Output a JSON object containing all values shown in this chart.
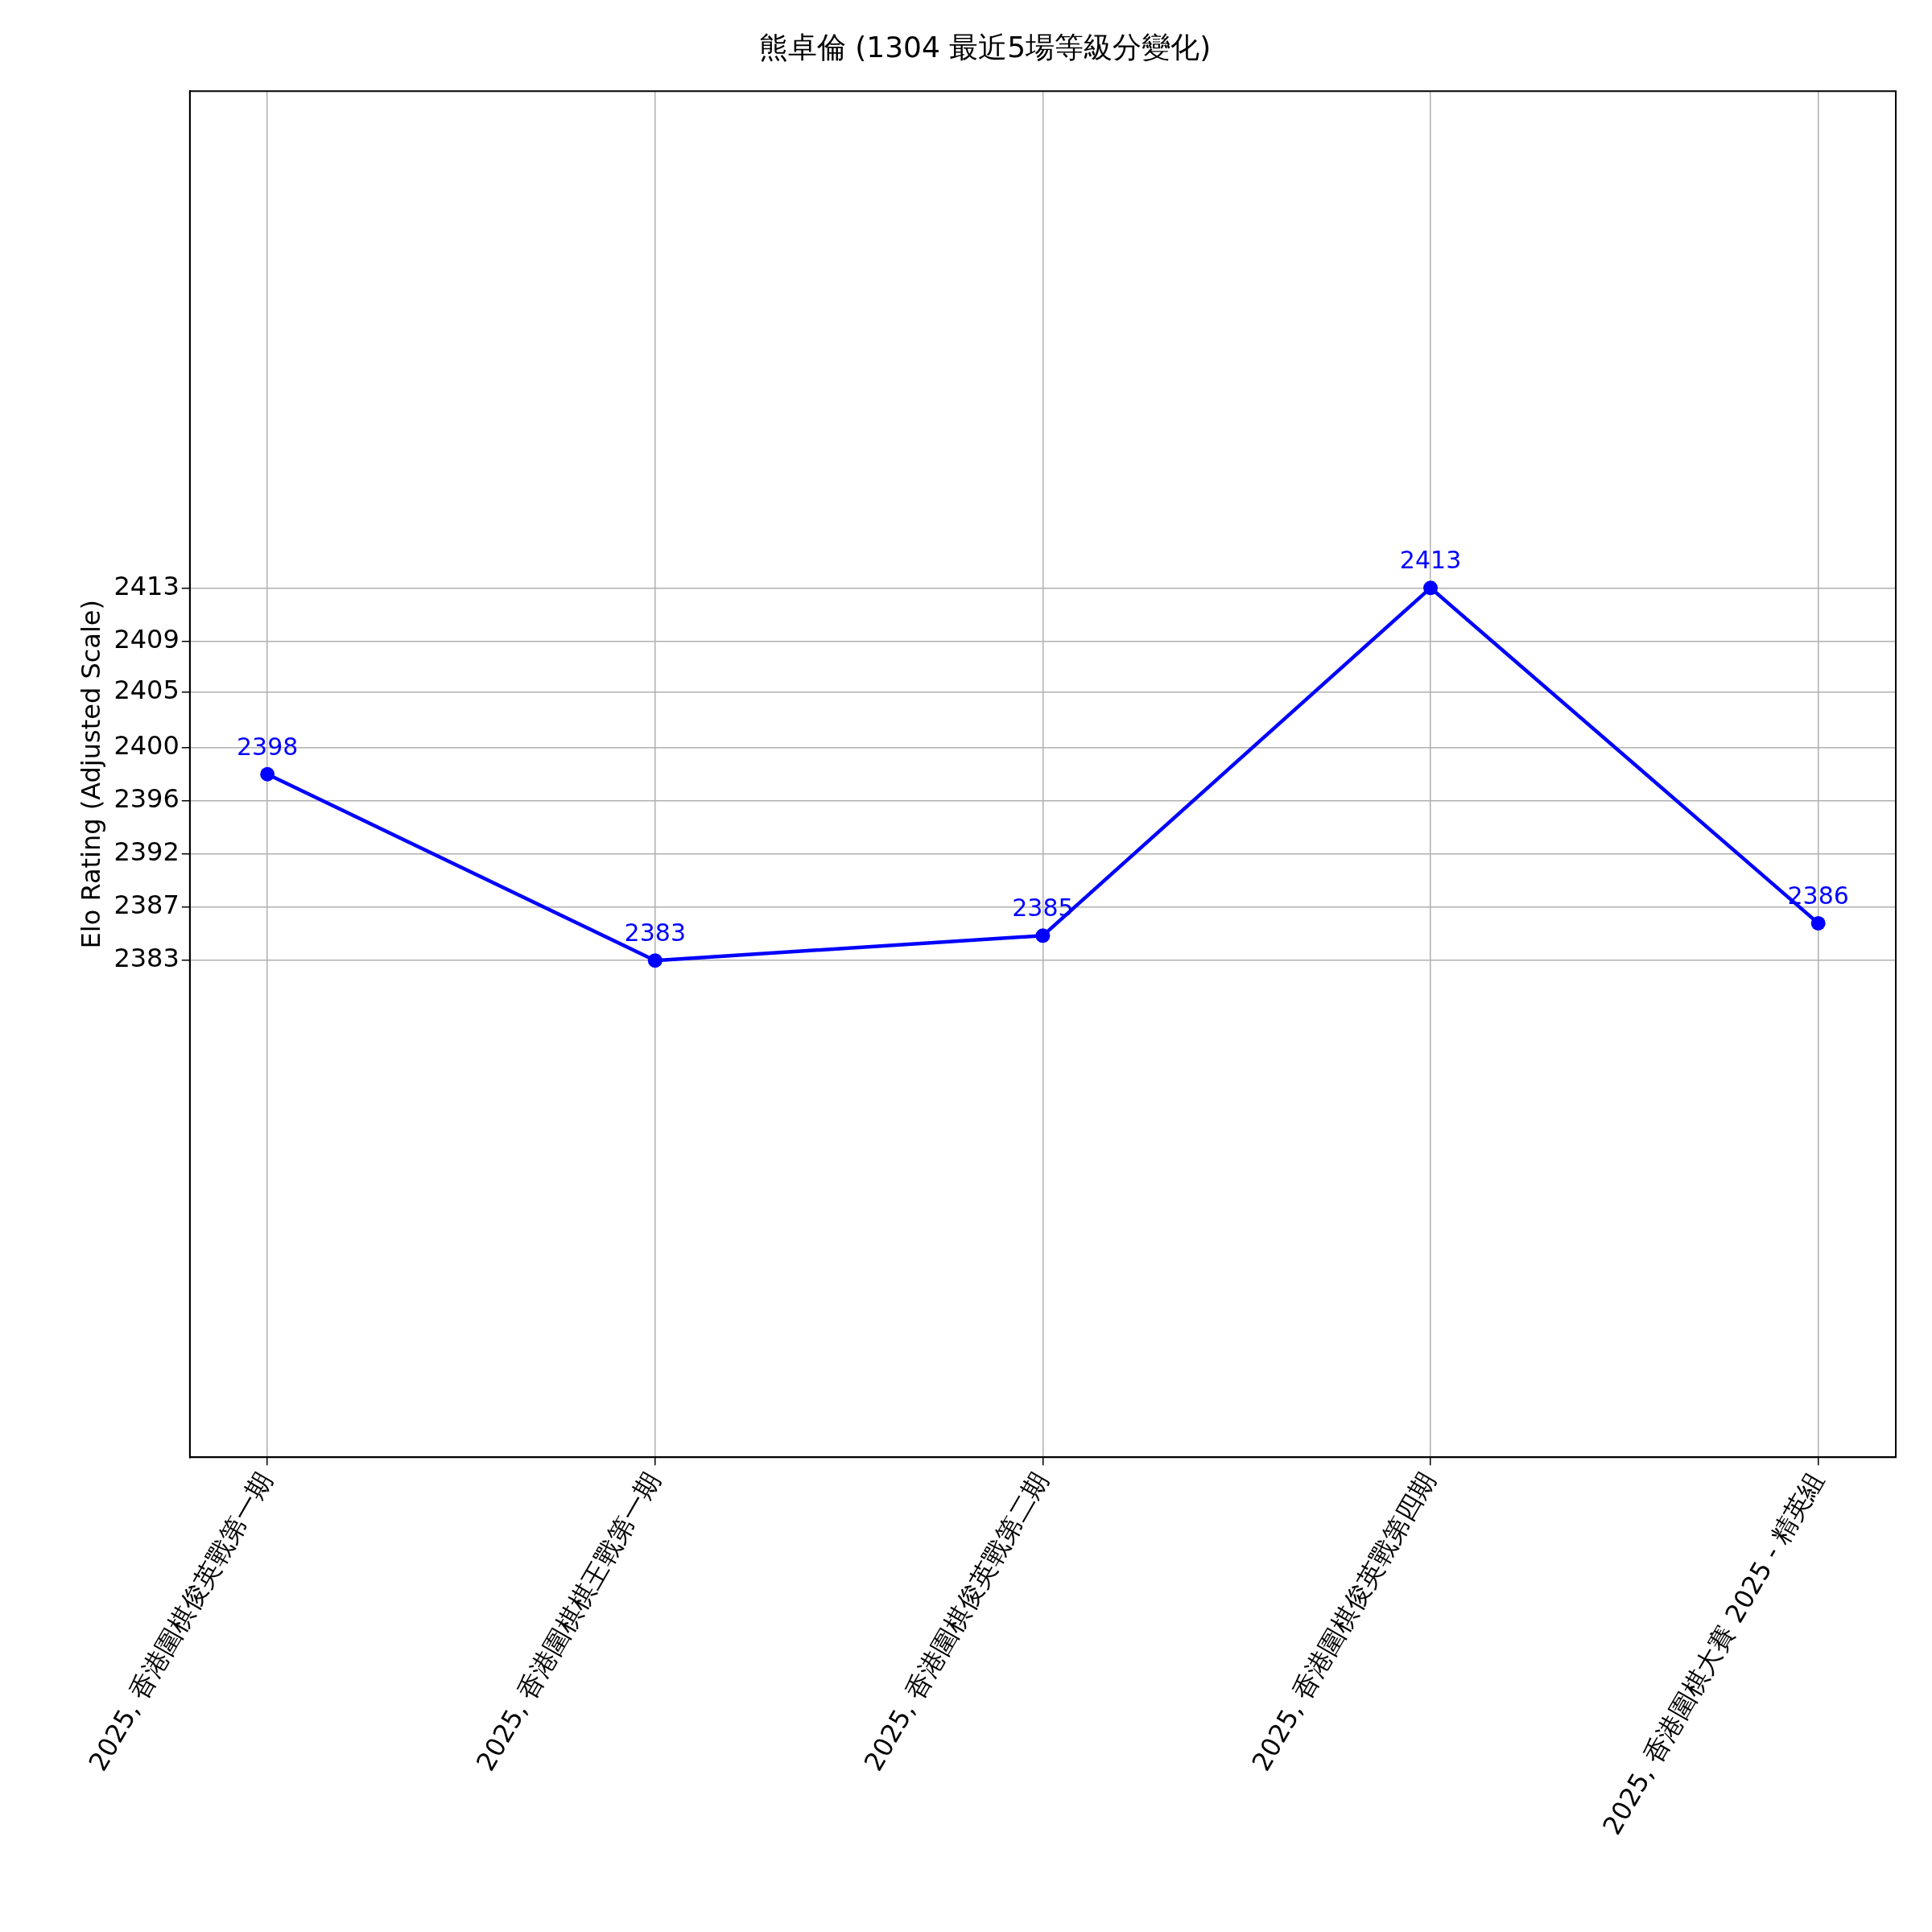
{
  "chart_data": {
    "type": "line",
    "title": "熊卓倫 (1304 最近5場等級分變化)",
    "ylabel": "Elo Rating (Adjusted Scale)",
    "categories": [
      "2025, 香港圍棋俊英戰第一期",
      "2025, 香港圍棋棋王戰第一期",
      "2025, 香港圍棋俊英戰第二期",
      "2025, 香港圍棋俊英戰第四期",
      "2025, 香港圍棋大賽 2025 - 精英組"
    ],
    "series": [
      {
        "color": "#0000ff",
        "values": [
          2398,
          2383,
          2385,
          2413,
          2386
        ]
      }
    ],
    "ylim": [
      2343,
      2453
    ],
    "yticks": [
      2383,
      {
        "value": 2387.29,
        "label": "2387"
      },
      {
        "value": 2391.57,
        "label": "2392"
      },
      {
        "value": 2395.86,
        "label": "2396"
      },
      {
        "value": 2400.14,
        "label": "2400"
      },
      {
        "value": 2404.6,
        "label": "2405"
      },
      {
        "value": 2408.71,
        "label": "2409"
      },
      2413
    ],
    "grid": true,
    "marker": "circle",
    "line_style": "solid",
    "data_labels": true
  }
}
